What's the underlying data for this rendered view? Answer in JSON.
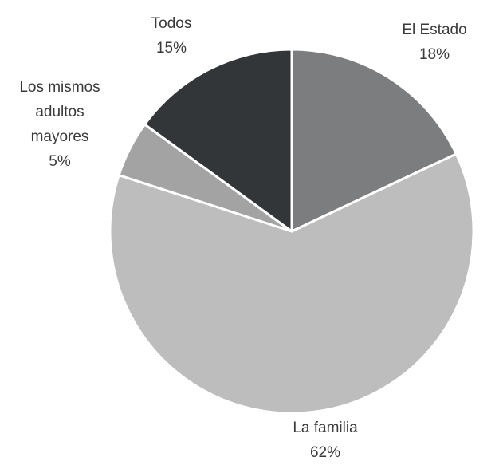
{
  "chart_data": {
    "type": "pie",
    "categories": [
      "El Estado",
      "La familia",
      "Los mismos adultos mayores",
      "Todos"
    ],
    "values": [
      18,
      62,
      5,
      15
    ],
    "value_labels": [
      "18%",
      "62%",
      "5%",
      "15%"
    ],
    "colors": [
      "#7b7d7e",
      "#bdbdbd",
      "#a3a3a3",
      "#333639"
    ]
  }
}
